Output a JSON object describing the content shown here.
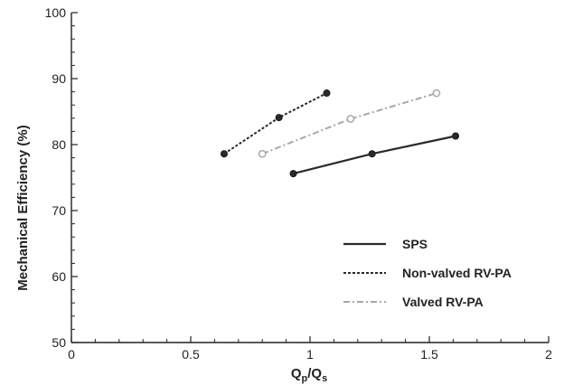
{
  "chart_data": {
    "type": "line",
    "title": "",
    "xlabel_main": "Q",
    "xlabel_sub1": "p",
    "xlabel_slash": "/Q",
    "xlabel_sub2": "s",
    "ylabel": "Mechanical Efficiency (%)",
    "xlim": [
      0,
      2
    ],
    "ylim": [
      50,
      100
    ],
    "x_ticks": [
      0,
      0.5,
      1,
      1.5,
      2
    ],
    "x_tick_labels": [
      "0",
      "0.5",
      "1",
      "1.5",
      "2"
    ],
    "y_ticks": [
      50,
      60,
      70,
      80,
      90,
      100
    ],
    "y_tick_labels": [
      "50",
      "60",
      "70",
      "80",
      "90",
      "100"
    ],
    "grid": false,
    "legend_position": "bottom-right",
    "series": [
      {
        "name": "SPS",
        "color": "#2a2a2a",
        "style": "solid",
        "marker": "filled",
        "x": [
          0.93,
          1.26,
          1.61
        ],
        "y": [
          75.6,
          78.6,
          81.3
        ]
      },
      {
        "name": "Non-valved RV-PA",
        "color": "#2a2a2a",
        "style": "dotted",
        "marker": "filled",
        "x": [
          0.64,
          0.87,
          1.07
        ],
        "y": [
          78.6,
          84.1,
          87.8
        ]
      },
      {
        "name": "Valved RV-PA",
        "color": "#a8a8a8",
        "style": "dashdot",
        "marker": "open",
        "x": [
          0.8,
          1.17,
          1.53
        ],
        "y": [
          78.6,
          83.9,
          87.8
        ]
      }
    ]
  }
}
